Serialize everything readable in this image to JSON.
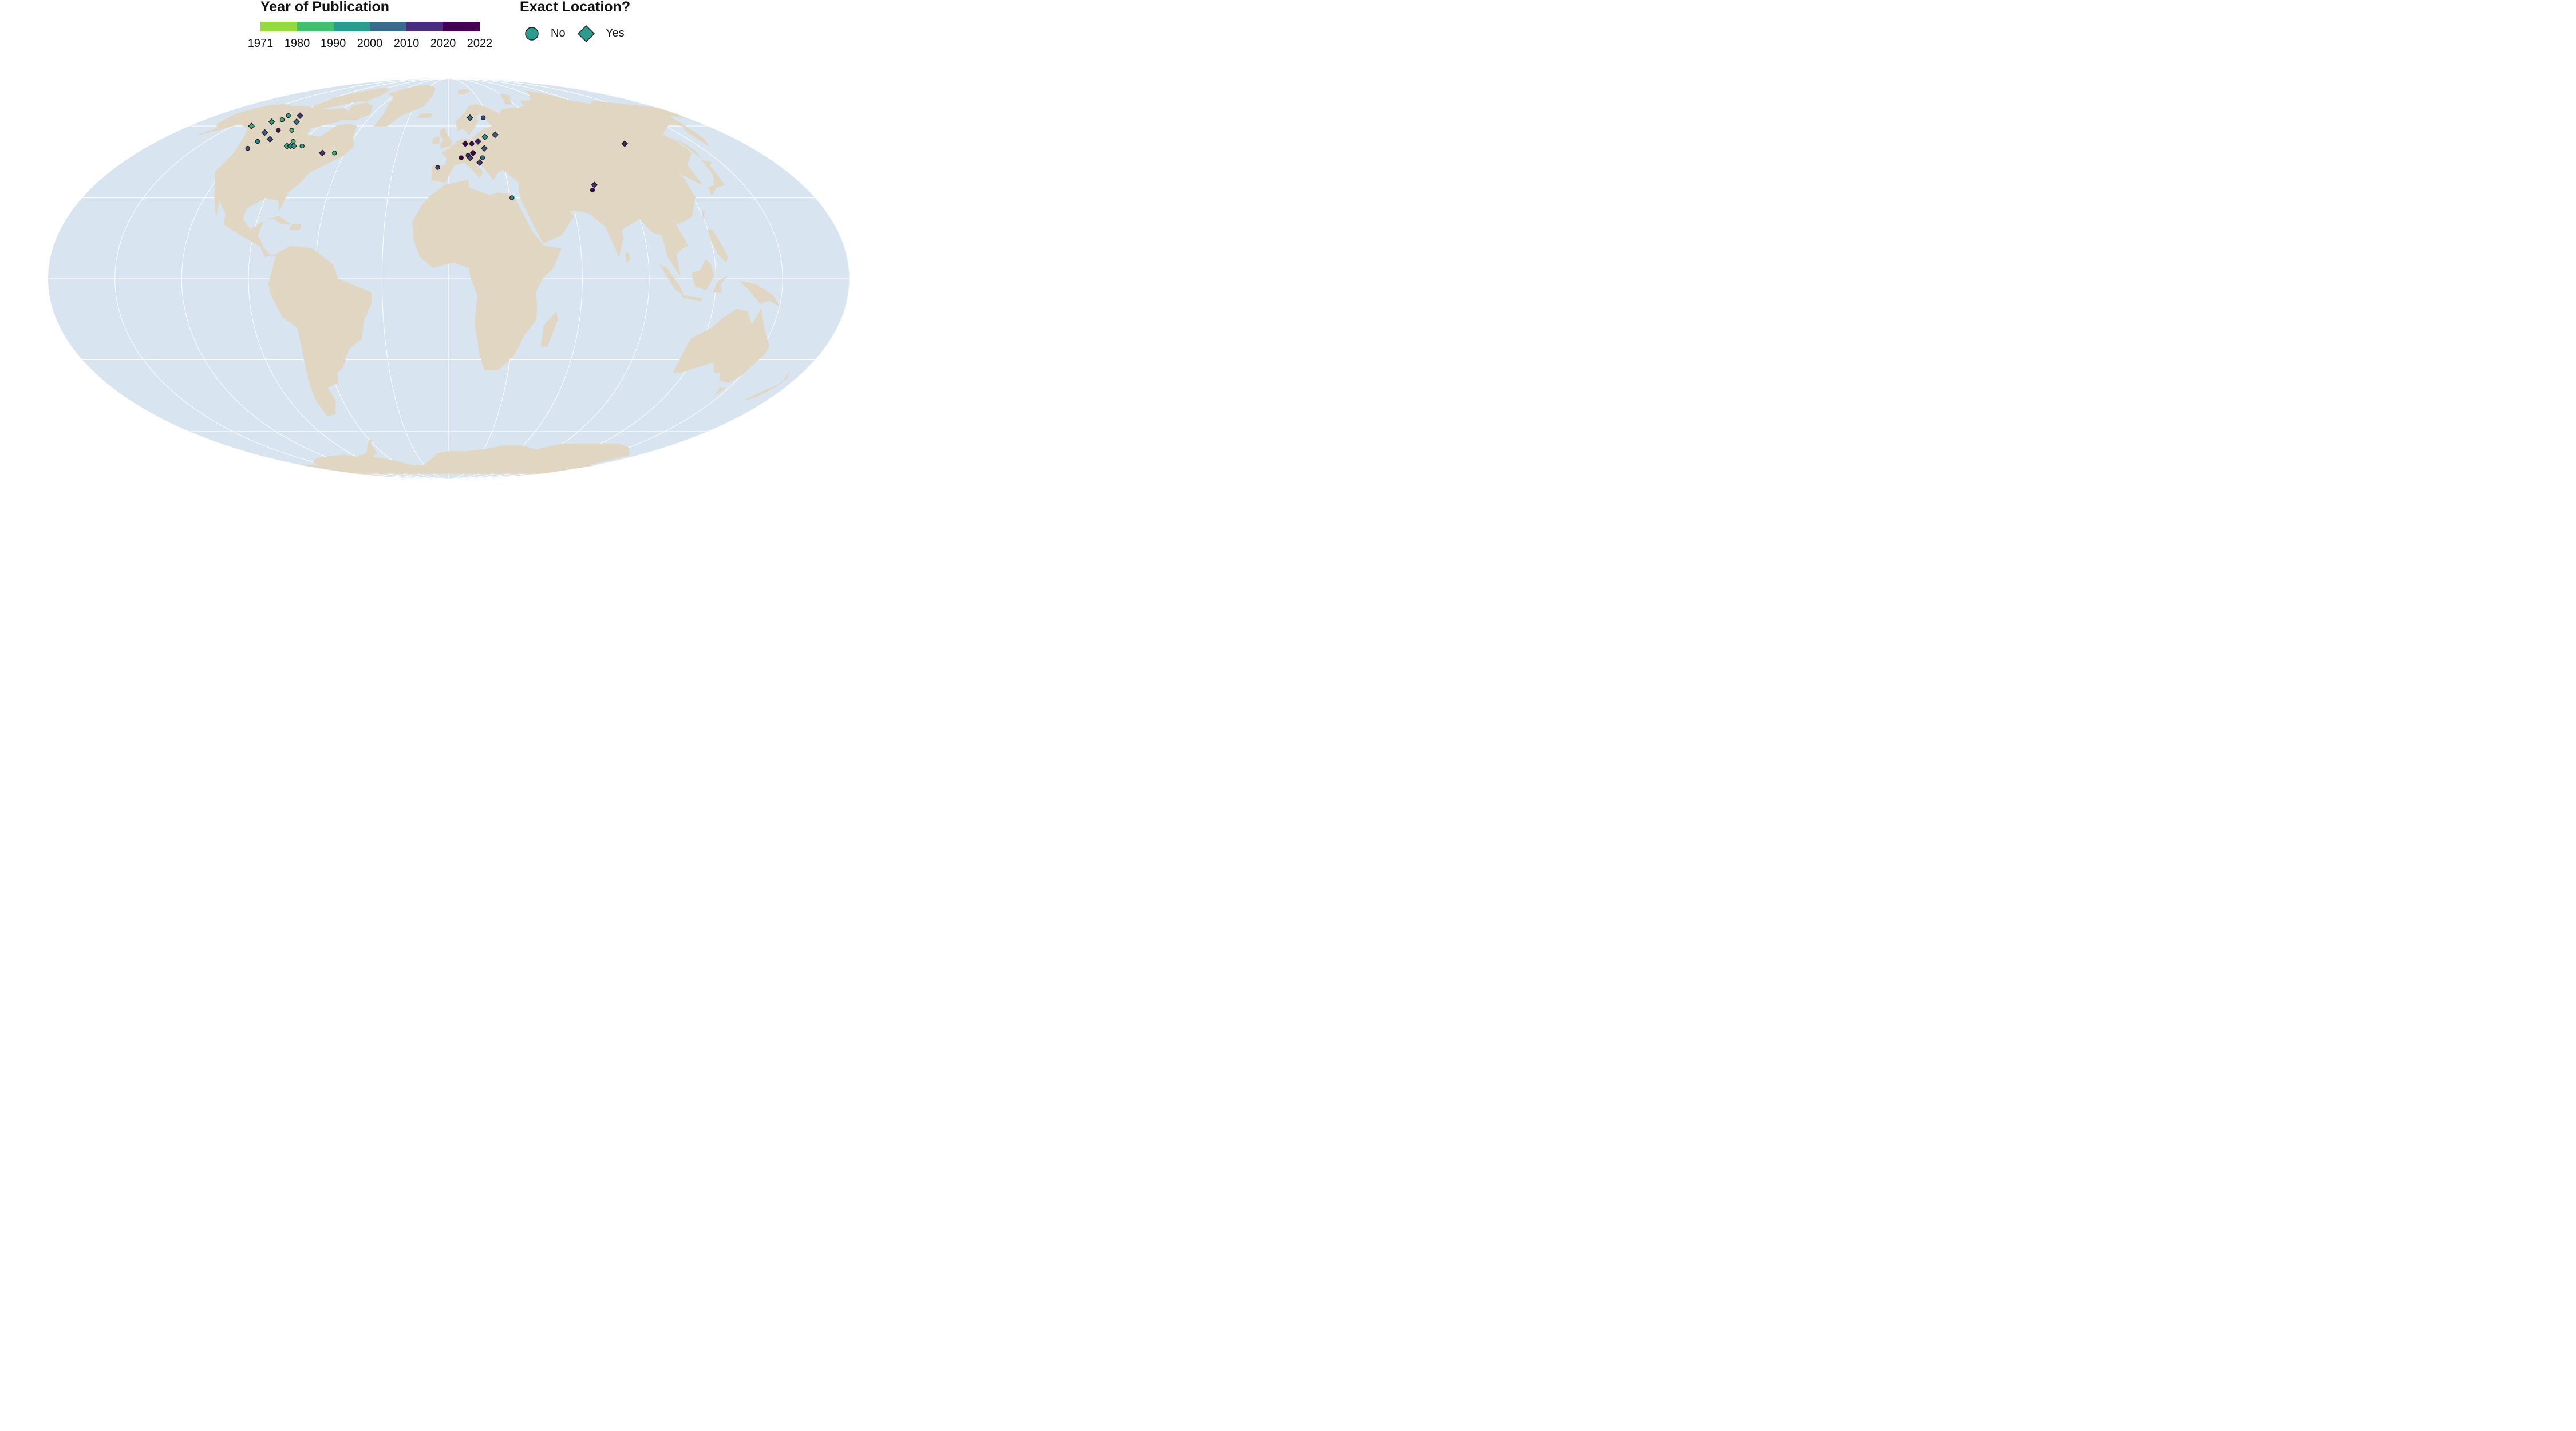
{
  "legend": {
    "color_title": "Year of Publication",
    "color_ticks": [
      "1971",
      "1980",
      "1990",
      "2000",
      "2010",
      "2020",
      "2022"
    ],
    "color_bins": [
      "#95d840",
      "#44bf70",
      "#2a9d8f",
      "#21908d",
      "#3b528b",
      "#472d7b",
      "#440154"
    ],
    "shape_title": "Exact Location?",
    "shape_items": [
      {
        "label": "No",
        "shape": "circle"
      },
      {
        "label": "Yes",
        "shape": "diamond"
      }
    ]
  },
  "colors": {
    "ocean": "#d8e4ef",
    "land": "#e0d6c2",
    "graticule": "#ffffff",
    "marker": "#2a9d8f"
  },
  "points": [
    {
      "lon": -137,
      "lat": 60,
      "year": 1985,
      "exact": "Yes"
    },
    {
      "lon": -128,
      "lat": 62,
      "year": 1990,
      "exact": "Yes"
    },
    {
      "lon": -124,
      "lat": 65,
      "year": 1988,
      "exact": "No"
    },
    {
      "lon": -123,
      "lat": 63,
      "year": 1985,
      "exact": "No"
    },
    {
      "lon": -115,
      "lat": 65,
      "year": 2015,
      "exact": "Yes"
    },
    {
      "lon": -110,
      "lat": 62,
      "year": 2005,
      "exact": "Yes"
    },
    {
      "lon": -121,
      "lat": 57,
      "year": 2008,
      "exact": "Yes"
    },
    {
      "lon": -114,
      "lat": 58,
      "year": 2020,
      "exact": "No"
    },
    {
      "lon": -105,
      "lat": 58,
      "year": 1982,
      "exact": "No"
    },
    {
      "lon": -118,
      "lat": 53,
      "year": 2000,
      "exact": "No"
    },
    {
      "lon": -112,
      "lat": 54,
      "year": 2012,
      "exact": "Yes"
    },
    {
      "lon": -119,
      "lat": 50,
      "year": 2012,
      "exact": "No"
    },
    {
      "lon": -96,
      "lat": 53,
      "year": 1982,
      "exact": "No"
    },
    {
      "lon": -97,
      "lat": 51,
      "year": 1985,
      "exact": "Yes"
    },
    {
      "lon": -95,
      "lat": 51,
      "year": 1990,
      "exact": "Yes"
    },
    {
      "lon": -93,
      "lat": 51,
      "year": 1995,
      "exact": "Yes"
    },
    {
      "lon": -88,
      "lat": 51,
      "year": 1988,
      "exact": "No"
    },
    {
      "lon": -73,
      "lat": 48,
      "year": 2015,
      "exact": "Yes"
    },
    {
      "lon": -66,
      "lat": 48,
      "year": 1985,
      "exact": "No"
    },
    {
      "lon": 16,
      "lat": 64,
      "year": 2005,
      "exact": "Yes"
    },
    {
      "lon": 26,
      "lat": 64,
      "year": 2012,
      "exact": "No"
    },
    {
      "lon": 23,
      "lat": 55,
      "year": 1995,
      "exact": "Yes"
    },
    {
      "lon": 30,
      "lat": 56,
      "year": 2010,
      "exact": "Yes"
    },
    {
      "lon": 10,
      "lat": 52,
      "year": 2022,
      "exact": "Yes"
    },
    {
      "lon": 14,
      "lat": 52,
      "year": 2022,
      "exact": "No"
    },
    {
      "lon": 18,
      "lat": 53,
      "year": 2018,
      "exact": "Yes"
    },
    {
      "lon": 21,
      "lat": 50,
      "year": 2008,
      "exact": "Yes"
    },
    {
      "lon": 14,
      "lat": 48,
      "year": 2022,
      "exact": "Yes"
    },
    {
      "lon": 11,
      "lat": 47,
      "year": 2018,
      "exact": "No"
    },
    {
      "lon": 12,
      "lat": 46,
      "year": 2012,
      "exact": "Yes"
    },
    {
      "lon": 7,
      "lat": 46,
      "year": 2022,
      "exact": "No"
    },
    {
      "lon": 19,
      "lat": 46,
      "year": 2005,
      "exact": "No"
    },
    {
      "lon": 17,
      "lat": 44,
      "year": 2015,
      "exact": "Yes"
    },
    {
      "lon": -6,
      "lat": 42,
      "year": 2012,
      "exact": "No"
    },
    {
      "lon": 31,
      "lat": 30,
      "year": 2000,
      "exact": "No"
    },
    {
      "lon": 74,
      "lat": 35,
      "year": 2015,
      "exact": "Yes"
    },
    {
      "lon": 72,
      "lat": 33,
      "year": 2022,
      "exact": "No"
    },
    {
      "lon": 107,
      "lat": 52,
      "year": 2018,
      "exact": "Yes"
    }
  ]
}
